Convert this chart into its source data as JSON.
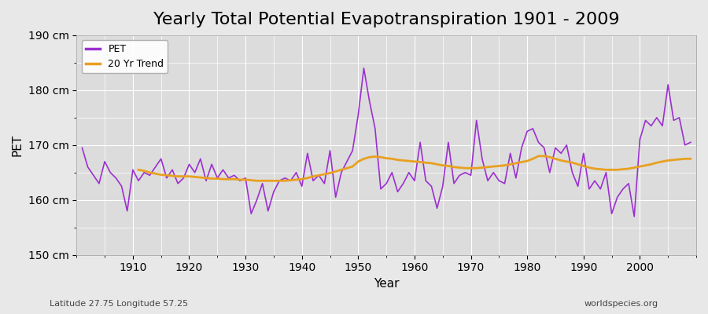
{
  "title": "Yearly Total Potential Evapotranspiration 1901 - 2009",
  "xlabel": "Year",
  "ylabel": "PET",
  "subtitle_left": "Latitude 27.75 Longitude 57.25",
  "subtitle_right": "worldspecies.org",
  "ylim": [
    150,
    190
  ],
  "yticks": [
    150,
    160,
    170,
    180,
    190
  ],
  "ytick_labels": [
    "150 cm",
    "160 cm",
    "170 cm",
    "180 cm",
    "190 cm"
  ],
  "xtick_labels": [
    "1910",
    "1920",
    "1930",
    "1940",
    "1950",
    "1960",
    "1970",
    "1980",
    "1990",
    "2000"
  ],
  "years": [
    1901,
    1902,
    1903,
    1904,
    1905,
    1906,
    1907,
    1908,
    1909,
    1910,
    1911,
    1912,
    1913,
    1914,
    1915,
    1916,
    1917,
    1918,
    1919,
    1920,
    1921,
    1922,
    1923,
    1924,
    1925,
    1926,
    1927,
    1928,
    1929,
    1930,
    1931,
    1932,
    1933,
    1934,
    1935,
    1936,
    1937,
    1938,
    1939,
    1940,
    1941,
    1942,
    1943,
    1944,
    1945,
    1946,
    1947,
    1948,
    1949,
    1950,
    1951,
    1952,
    1953,
    1954,
    1955,
    1956,
    1957,
    1958,
    1959,
    1960,
    1961,
    1962,
    1963,
    1964,
    1965,
    1966,
    1967,
    1968,
    1969,
    1970,
    1971,
    1972,
    1973,
    1974,
    1975,
    1976,
    1977,
    1978,
    1979,
    1980,
    1981,
    1982,
    1983,
    1984,
    1985,
    1986,
    1987,
    1988,
    1989,
    1990,
    1991,
    1992,
    1993,
    1994,
    1995,
    1996,
    1997,
    1998,
    1999,
    2000,
    2001,
    2002,
    2003,
    2004,
    2005,
    2006,
    2007,
    2008,
    2009
  ],
  "pet": [
    169.5,
    166.0,
    164.5,
    163.0,
    167.0,
    165.0,
    164.0,
    162.5,
    158.0,
    165.5,
    163.5,
    165.0,
    164.5,
    166.0,
    167.5,
    164.0,
    165.5,
    163.0,
    164.0,
    166.5,
    165.0,
    167.5,
    163.5,
    166.5,
    164.0,
    165.5,
    164.0,
    164.5,
    163.5,
    164.0,
    157.5,
    160.0,
    163.0,
    158.0,
    161.5,
    163.5,
    164.0,
    163.5,
    165.0,
    162.5,
    168.5,
    163.5,
    164.5,
    163.0,
    169.0,
    160.5,
    165.0,
    167.0,
    169.0,
    175.5,
    184.0,
    178.0,
    173.0,
    162.0,
    163.0,
    165.0,
    161.5,
    163.0,
    165.0,
    163.5,
    170.5,
    163.5,
    162.5,
    158.5,
    162.5,
    170.5,
    163.0,
    164.5,
    165.0,
    164.5,
    174.5,
    167.5,
    163.5,
    165.0,
    163.5,
    163.0,
    168.5,
    164.0,
    169.5,
    172.5,
    173.0,
    170.5,
    169.5,
    165.0,
    169.5,
    168.5,
    170.0,
    165.0,
    162.5,
    168.5,
    162.0,
    163.5,
    162.0,
    165.0,
    157.5,
    160.5,
    162.0,
    163.0,
    157.0,
    171.0,
    174.5,
    173.5,
    175.0,
    173.5,
    181.0,
    174.5,
    175.0,
    170.0,
    170.5
  ],
  "trend": [
    null,
    null,
    null,
    null,
    null,
    null,
    null,
    null,
    null,
    null,
    165.5,
    165.3,
    165.0,
    164.8,
    164.6,
    164.5,
    164.4,
    164.3,
    164.3,
    164.3,
    164.2,
    164.1,
    164.0,
    163.9,
    163.9,
    163.8,
    163.8,
    163.8,
    163.7,
    163.7,
    163.6,
    163.5,
    163.5,
    163.5,
    163.5,
    163.5,
    163.5,
    163.6,
    163.7,
    163.8,
    164.0,
    164.3,
    164.5,
    164.7,
    164.9,
    165.2,
    165.5,
    165.8,
    166.1,
    167.0,
    167.5,
    167.8,
    167.9,
    167.8,
    167.6,
    167.5,
    167.3,
    167.2,
    167.1,
    167.0,
    166.9,
    166.8,
    166.7,
    166.5,
    166.3,
    166.2,
    166.0,
    165.9,
    165.8,
    165.8,
    165.8,
    165.9,
    166.0,
    166.1,
    166.2,
    166.3,
    166.5,
    166.7,
    166.9,
    167.1,
    167.5,
    168.0,
    168.0,
    167.8,
    167.5,
    167.2,
    167.0,
    166.8,
    166.5,
    166.2,
    165.9,
    165.7,
    165.6,
    165.5,
    165.5,
    165.5,
    165.6,
    165.7,
    165.9,
    166.1,
    166.3,
    166.5,
    166.8,
    167.0,
    167.2,
    167.3,
    167.4,
    167.5,
    167.5
  ],
  "pet_color": "#9b30d0",
  "trend_color": "#e8a020",
  "background_color": "#e8e8e8",
  "plot_bg_color": "#dcdcdc",
  "grid_color": "#ffffff",
  "legend_labels": [
    "PET",
    "20 Yr Trend"
  ],
  "title_fontsize": 16,
  "label_fontsize": 11,
  "tick_fontsize": 10
}
